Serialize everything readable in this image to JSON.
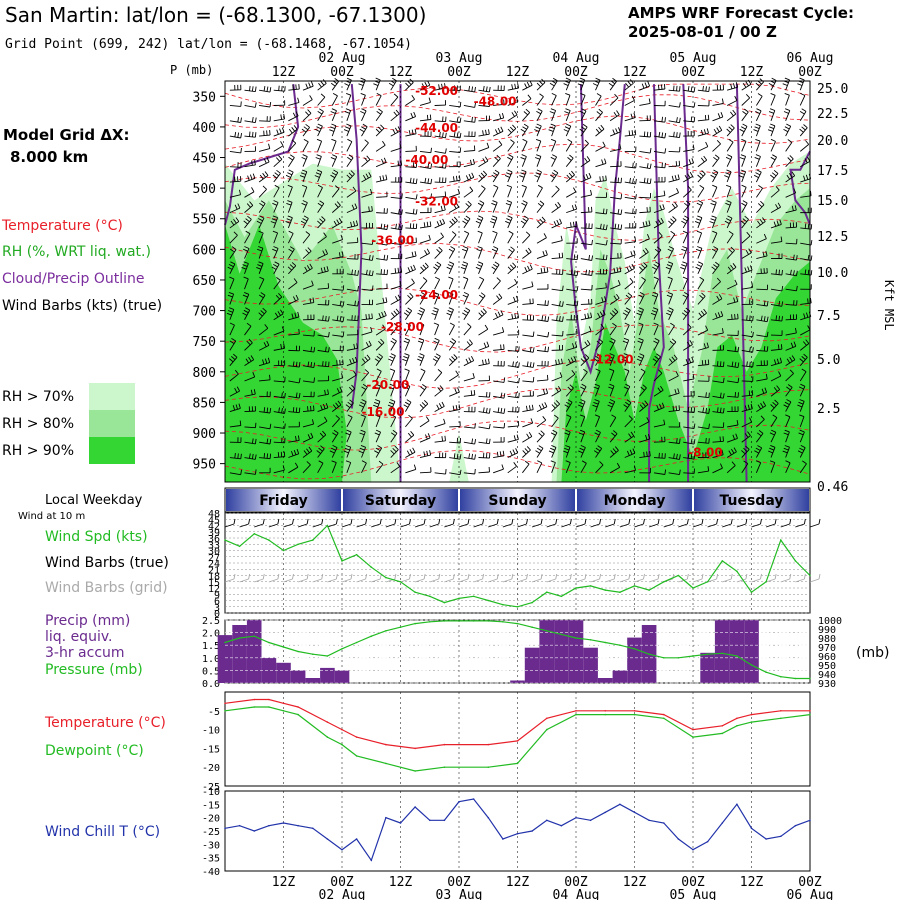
{
  "header": {
    "station_title": "San Martin:  lat/lon = (-68.1300, -67.1300)",
    "grid_point": "Grid Point (699, 242) lat/lon = (-68.1468, -67.1054)",
    "forecast_label": "AMPS WRF Forecast Cycle:",
    "forecast_cycle": "2025-08-01 / 00  Z"
  },
  "left_panel": {
    "grid_label": "Model Grid ΔX:",
    "grid_value": "8.000 km",
    "legend": [
      {
        "text": "Temperature (°C)",
        "color": "#e8202a"
      },
      {
        "text": "RH (%, WRT liq. wat.)",
        "color": "#22aa22"
      },
      {
        "text": "Cloud/Precip Outline",
        "color": "#7b2d9e"
      },
      {
        "text": "Wind Barbs (kts) (true)",
        "color": "#000000"
      }
    ],
    "rh_scale": [
      {
        "text": "RH > 70%",
        "color": "#ccf7cc"
      },
      {
        "text": "RH > 80%",
        "color": "#99e699"
      },
      {
        "text": "RH > 90%",
        "color": "#33d633"
      }
    ]
  },
  "time_axis": {
    "top_hour_labels": [
      "12Z",
      "00Z",
      "12Z",
      "00Z",
      "12Z",
      "00Z",
      "12Z",
      "00Z",
      "12Z",
      "00Z"
    ],
    "date_labels": [
      "02 Aug",
      "03 Aug",
      "04 Aug",
      "05 Aug",
      "06 Aug"
    ],
    "day_names": [
      "Friday",
      "Saturday",
      "Sunday",
      "Monday",
      "Tuesday"
    ],
    "local_weekday_label": "Local Weekday"
  },
  "chart_data": [
    {
      "type": "heatmap",
      "name": "cross-section",
      "yaxis_left_title": "P (mb)",
      "yaxis_left_ticks": [
        "350",
        "400",
        "450",
        "500",
        "550",
        "600",
        "650",
        "700",
        "750",
        "800",
        "850",
        "900",
        "950"
      ],
      "yaxis_right_title": "Kft MSL",
      "yaxis_right_ticks": [
        "25.0",
        "22.5",
        "20.0",
        "17.5",
        "15.0",
        "12.5",
        "10.0",
        "7.5",
        "5.0",
        "2.5",
        "0.46"
      ],
      "x_hours": [
        0,
        120
      ],
      "isotherm_labels": [
        {
          "text": "-52.00",
          "t": 39,
          "p": 340
        },
        {
          "text": "-48.00",
          "t": 51,
          "p": 357
        },
        {
          "text": "-44.00",
          "t": 39,
          "p": 400
        },
        {
          "text": "-40.00",
          "t": 37,
          "p": 452
        },
        {
          "text": "-32.00",
          "t": 39,
          "p": 520
        },
        {
          "text": "-36.00",
          "t": 30,
          "p": 584
        },
        {
          "text": "-24.00",
          "t": 39,
          "p": 673
        },
        {
          "text": "-28.00",
          "t": 32,
          "p": 725
        },
        {
          "text": "-12.00",
          "t": 75,
          "p": 778
        },
        {
          "text": "-20.00",
          "t": 29,
          "p": 820
        },
        {
          "text": "-16.00",
          "t": 28,
          "p": 864
        },
        {
          "text": "-8.00",
          "t": 95,
          "p": 930
        }
      ]
    },
    {
      "type": "line",
      "name": "wind",
      "row_label": "Wind at 10 m",
      "legend": [
        {
          "text": "Wind Spd (kts)",
          "color": "#22bb22"
        },
        {
          "text": "Wind Barbs (true)",
          "color": "#000000"
        },
        {
          "text": "Wind Barbs (grid)",
          "color": "#aaaaaa"
        }
      ],
      "yticks": [
        "48",
        "45",
        "42",
        "39",
        "36",
        "33",
        "30",
        "27",
        "24",
        "21",
        "18",
        "15",
        "12",
        "9",
        "6",
        "3",
        "0"
      ],
      "ylim": [
        0,
        48
      ],
      "x_hours": [
        0,
        3,
        6,
        9,
        12,
        15,
        18,
        21,
        24,
        27,
        30,
        33,
        36,
        39,
        42,
        45,
        48,
        51,
        54,
        57,
        60,
        63,
        66,
        69,
        72,
        75,
        78,
        81,
        84,
        87,
        90,
        93,
        96,
        99,
        102,
        105,
        108,
        111,
        114,
        117,
        120
      ],
      "values": [
        35,
        32,
        38,
        35,
        30,
        33,
        35,
        42,
        25,
        28,
        22,
        17,
        15,
        10,
        8,
        5,
        7,
        8,
        6,
        4,
        3,
        5,
        10,
        8,
        12,
        13,
        11,
        10,
        13,
        11,
        15,
        18,
        12,
        15,
        25,
        20,
        10,
        15,
        35,
        25,
        18
      ]
    },
    {
      "type": "bar",
      "name": "precip-pressure",
      "legend": [
        {
          "text": "Precip (mm)",
          "color": "#6a2a8e"
        },
        {
          "text": "liq. equiv.",
          "color": "#6a2a8e"
        },
        {
          "text": "3-hr accum",
          "color": "#6a2a8e"
        },
        {
          "text": "Pressure (mb)",
          "color": "#22bb22"
        }
      ],
      "yticks_left": [
        "2.5",
        "2.0",
        "1.5",
        "1.0",
        "0.5",
        "0.0"
      ],
      "yticks_right": [
        "1000",
        "990",
        "980",
        "970",
        "960",
        "950",
        "940",
        "930"
      ],
      "unit_right": "(mb)",
      "ylim_precip": [
        0,
        2.5
      ],
      "ylim_pressure": [
        930,
        1000
      ],
      "x_hours": [
        0,
        3,
        6,
        9,
        12,
        15,
        18,
        21,
        24,
        27,
        30,
        33,
        36,
        39,
        42,
        45,
        48,
        51,
        54,
        57,
        60,
        63,
        66,
        69,
        72,
        75,
        78,
        81,
        84,
        87,
        90,
        93,
        96,
        99,
        102,
        105,
        108,
        111,
        114,
        117,
        120
      ],
      "precip": [
        1.9,
        2.3,
        2.5,
        1.0,
        0.8,
        0.5,
        0.2,
        0.6,
        0.5,
        0,
        0,
        0,
        0,
        0,
        0,
        0,
        0,
        0,
        0,
        0,
        0.1,
        1.4,
        2.5,
        2.5,
        2.5,
        1.4,
        0.2,
        0.5,
        1.8,
        2.3,
        0,
        0,
        0,
        1.2,
        2.5,
        2.5,
        2.5,
        0,
        0,
        0,
        0
      ],
      "pressure": [
        975,
        980,
        982,
        975,
        970,
        965,
        962,
        960,
        968,
        975,
        982,
        988,
        992,
        996,
        998,
        999,
        999,
        999,
        999,
        998,
        996,
        992,
        988,
        984,
        980,
        978,
        975,
        972,
        968,
        962,
        958,
        958,
        960,
        962,
        963,
        960,
        950,
        942,
        937,
        935,
        935
      ]
    },
    {
      "type": "line",
      "name": "temperature-dewpoint",
      "legend": [
        {
          "text": "Temperature (°C)",
          "color": "#e8202a"
        },
        {
          "text": "Dewpoint (°C)",
          "color": "#22bb22"
        }
      ],
      "yticks": [
        "-5",
        "-10",
        "-15",
        "-20",
        "-25"
      ],
      "ylim": [
        -25,
        0
      ],
      "x_hours": [
        0,
        6,
        9,
        12,
        15,
        21,
        24,
        27,
        33,
        39,
        45,
        54,
        60,
        66,
        72,
        78,
        84,
        90,
        96,
        102,
        105,
        108,
        114,
        120
      ],
      "series": [
        {
          "name": "Temperature (°C)",
          "values": [
            -3,
            -2,
            -2,
            -3,
            -4,
            -8,
            -10,
            -12,
            -14,
            -15,
            -14,
            -14,
            -13,
            -7,
            -5,
            -5,
            -5,
            -6,
            -10,
            -9,
            -7,
            -6,
            -5,
            -5
          ]
        },
        {
          "name": "Dewpoint (°C)",
          "values": [
            -5,
            -4,
            -4,
            -5,
            -6,
            -12,
            -14,
            -17,
            -19,
            -21,
            -20,
            -20,
            -19,
            -10,
            -6,
            -6,
            -6,
            -7,
            -12,
            -11,
            -9,
            -8,
            -7,
            -6
          ]
        }
      ]
    },
    {
      "type": "line",
      "name": "wind-chill",
      "legend": [
        {
          "text": "Wind Chill T (°C)",
          "color": "#2233aa"
        }
      ],
      "yticks": [
        "-10",
        "-15",
        "-20",
        "-25",
        "-30",
        "-35",
        "-40"
      ],
      "ylim": [
        -40,
        -10
      ],
      "x_hours": [
        0,
        3,
        6,
        9,
        12,
        15,
        18,
        21,
        24,
        27,
        30,
        33,
        36,
        39,
        42,
        45,
        48,
        51,
        54,
        57,
        60,
        63,
        66,
        69,
        72,
        75,
        78,
        81,
        84,
        87,
        90,
        93,
        96,
        99,
        102,
        105,
        108,
        111,
        114,
        117,
        120
      ],
      "values": [
        -24,
        -23,
        -25,
        -23,
        -22,
        -23,
        -24,
        -28,
        -32,
        -28,
        -36,
        -20,
        -22,
        -16,
        -21,
        -21,
        -14,
        -13,
        -20,
        -28,
        -26,
        -25,
        -21,
        -23,
        -20,
        -21,
        -18,
        -15,
        -18,
        -21,
        -22,
        -28,
        -32,
        -29,
        -22,
        -15,
        -24,
        -28,
        -27,
        -23,
        -21
      ]
    }
  ]
}
